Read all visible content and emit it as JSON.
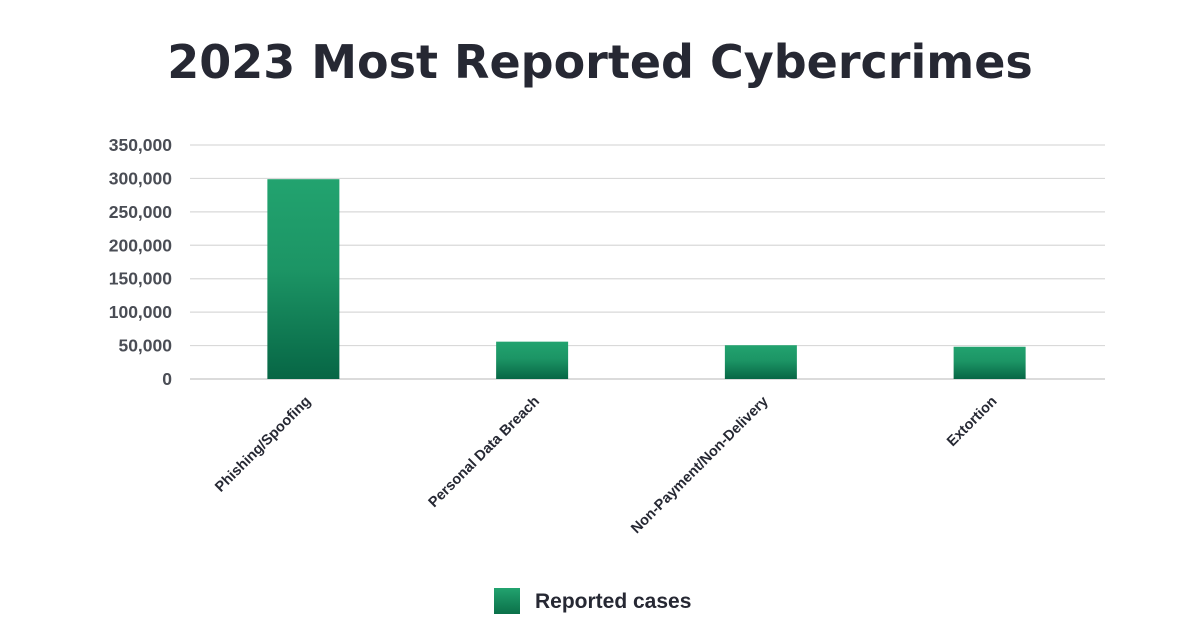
{
  "chart_data": {
    "type": "bar",
    "title": "2023 Most Reported Cybercrimes",
    "categories": [
      "Phishing/Spoofing",
      "Personal Data Breach",
      "Non-Payment/Non-Delivery",
      "Extortion"
    ],
    "series": [
      {
        "name": "Reported cases",
        "values": [
          298878,
          55851,
          50523,
          48223
        ]
      }
    ],
    "yticks": [
      0,
      50000,
      100000,
      150000,
      200000,
      250000,
      300000,
      350000
    ],
    "ytick_labels": [
      "0",
      "50,000",
      "100,000",
      "150,000",
      "200,000",
      "250,000",
      "300,000",
      "350,000"
    ],
    "ylim": [
      0,
      350000
    ],
    "xlabel": "",
    "ylabel": "",
    "grid": true,
    "legend_position": "bottom-center"
  },
  "colors": {
    "bar_top": "#22a36f",
    "bar_mid": "#1c9565",
    "bar_bottom": "#076645",
    "title": "#262833",
    "grid": "#d9d9d9"
  }
}
